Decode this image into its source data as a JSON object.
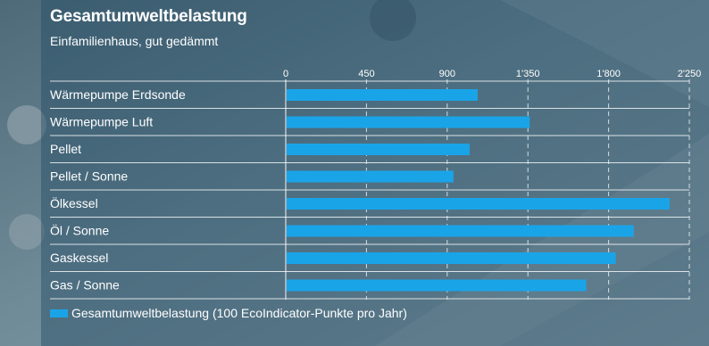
{
  "colors": {
    "bar": "#1aa4e8",
    "grid": "#ffffff"
  },
  "chart_data": {
    "type": "bar",
    "orientation": "horizontal",
    "title": "Gesamtumweltbelastung",
    "subtitle": "Einfamilienhaus, gut gedämmt",
    "categories": [
      "Wärmepumpe Erdsonde",
      "Wärmepumpe Luft",
      "Pellet",
      "Pellet / Sonne",
      "Ölkessel",
      "Öl / Sonne",
      "Gaskessel",
      "Gas / Sonne"
    ],
    "series": [
      {
        "name": "Gesamtumweltbelastung (100 EcoIndicator-Punkte pro Jahr)",
        "values": [
          1070,
          1360,
          1025,
          935,
          2140,
          1940,
          1840,
          1675
        ]
      }
    ],
    "xlim": [
      0,
      2250
    ],
    "ticks": [
      0,
      450,
      900,
      1350,
      1800,
      2250
    ],
    "tick_labels": [
      "0",
      "450",
      "900",
      "1'350",
      "1'800",
      "2'250"
    ],
    "grid": true,
    "legend_position": "bottom-left"
  }
}
